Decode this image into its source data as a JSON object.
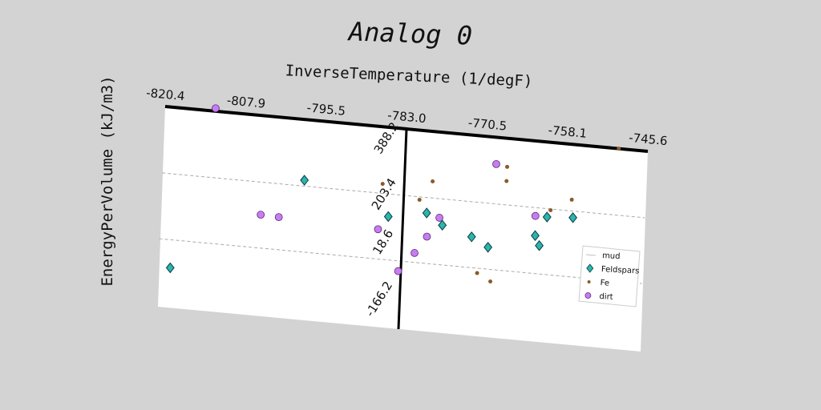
{
  "chart_data": {
    "type": "scatter",
    "title": "Analog 0",
    "xlabel": "InverseTemperature (1/degF)",
    "ylabel": "EnergyPerVolume (kJ/m3)",
    "x_ticks": [
      "-820.4",
      "-807.9",
      "-795.5",
      "-783.0",
      "-770.5",
      "-758.1",
      "-745.6"
    ],
    "y_ticks": [
      "-166.2",
      "18.6",
      "203.4",
      "388.2"
    ],
    "xlim": [
      -820.4,
      -745.6
    ],
    "ylim": [
      -166.2,
      388.2
    ],
    "grid": "horizontal-dashed",
    "legend_position": "bottom-right",
    "series": [
      {
        "name": "mud",
        "marker": "line",
        "color": "#c0c0c0",
        "points": []
      },
      {
        "name": "Feldspars",
        "marker": "diamond",
        "color": "#2ab5b0",
        "points": [
          [
            -818.5,
            -60
          ],
          [
            -798.4,
            220
          ],
          [
            -785.2,
            140
          ],
          [
            -779.3,
            160
          ],
          [
            -776.8,
            130
          ],
          [
            -772.2,
            105
          ],
          [
            -769.6,
            80
          ],
          [
            -762.4,
            125
          ],
          [
            -761.7,
            98
          ],
          [
            -760.7,
            180
          ],
          [
            -756.7,
            185
          ]
        ]
      },
      {
        "name": "Fe",
        "marker": "dot",
        "color": "#8b5a2b",
        "points": [
          [
            -786.3,
            230
          ],
          [
            -780.5,
            195
          ],
          [
            -778.6,
            250
          ],
          [
            -771.1,
            5
          ],
          [
            -769.0,
            -15
          ],
          [
            -767.2,
            310
          ],
          [
            -767.2,
            270
          ],
          [
            -760.2,
            200
          ],
          [
            -757.0,
            235
          ],
          [
            -750.1,
            390
          ]
        ]
      },
      {
        "name": "dirt",
        "marker": "circle",
        "color": "#c77df0",
        "points": [
          [
            -812.6,
            398
          ],
          [
            -804.9,
            112
          ],
          [
            -802.1,
            110
          ],
          [
            -786.7,
            102
          ],
          [
            -783.3,
            -10
          ],
          [
            -780.9,
            45
          ],
          [
            -779.1,
            94
          ],
          [
            -777.3,
            150
          ],
          [
            -768.9,
            315
          ],
          [
            -762.5,
            180
          ]
        ]
      }
    ]
  }
}
